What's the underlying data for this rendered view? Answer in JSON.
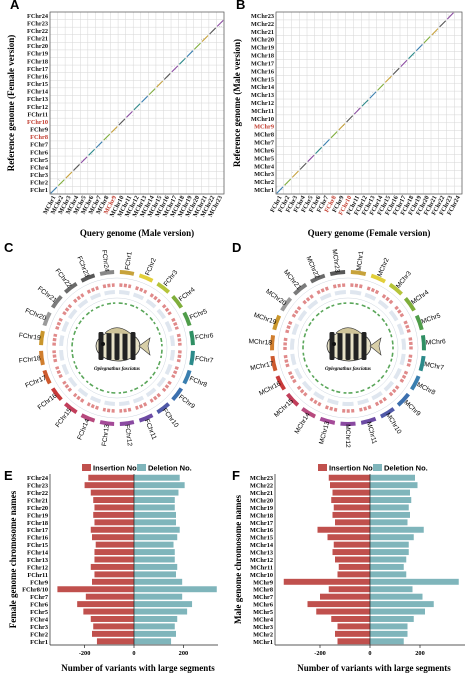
{
  "chart_data": [
    {
      "panel": "A",
      "type": "scatter",
      "xlabel": "Query genome (Male version)",
      "ylabel": "Reference genome (Female version)",
      "y_ticks": [
        "FChr1",
        "FChr2",
        "FChr3",
        "FChr4",
        "FChr5",
        "FChr6",
        "FChr7",
        "FChr8",
        "FChr9",
        "FChr10",
        "FChr11",
        "FChr12",
        "FChr13",
        "FChr14",
        "FChr15",
        "FChr16",
        "FChr17",
        "FChr18",
        "FChr19",
        "FChr20",
        "FChr21",
        "FChr22",
        "FChr23",
        "FChr24"
      ],
      "x_ticks": [
        "MChr1",
        "MChr2",
        "MChr3",
        "MChr4",
        "MChr5",
        "MChr6",
        "MChr7",
        "MChr8",
        "MChr9",
        "MChr10",
        "MChr11",
        "MChr12",
        "MChr13",
        "MChr14",
        "MChr15",
        "MChr16",
        "MChr17",
        "MChr18",
        "MChr19",
        "MChr20",
        "MChr21",
        "MChr22",
        "MChr23"
      ],
      "highlight_y": [
        "FChr8",
        "FChr10"
      ],
      "highlight_x": [
        "MChr9"
      ],
      "highlight_color": "#c0392b"
    },
    {
      "panel": "B",
      "type": "scatter",
      "xlabel": "Query genome (Female version)",
      "ylabel": "Reference genome (Male version)",
      "y_ticks": [
        "MChr1",
        "MChr2",
        "MChr3",
        "MChr4",
        "MChr5",
        "MChr6",
        "MChr7",
        "MChr8",
        "MChr9",
        "MChr10",
        "MChr11",
        "MChr12",
        "MChr13",
        "MChr14",
        "MChr15",
        "MChr16",
        "MChr17",
        "MChr18",
        "MChr19",
        "MChr20",
        "MChr21",
        "MChr22",
        "MChr23"
      ],
      "x_ticks": [
        "FChr1",
        "FChr2",
        "FChr3",
        "FChr4",
        "FChr5",
        "FChr6",
        "FChr7",
        "FChr8",
        "FChr9",
        "FChr10",
        "FChr11",
        "FChr12",
        "FChr13",
        "FChr14",
        "FChr15",
        "FChr16",
        "FChr17",
        "FChr18",
        "FChr19",
        "FChr20",
        "FChr21",
        "FChr22",
        "FChr23",
        "FChr24"
      ],
      "highlight_y": [
        "MChr9"
      ],
      "highlight_x": [
        "FChr8",
        "FChr10"
      ],
      "highlight_color": "#c0392b"
    },
    {
      "panel": "C",
      "type": "circos",
      "species": "Oplegnathus fasciatus",
      "chromosomes": [
        "FChr1",
        "FChr2",
        "FChr3",
        "FChr4",
        "FChr5",
        "FChr6",
        "FChr7",
        "FChr8",
        "FChr9",
        "FChr10",
        "FChr11",
        "FChr12",
        "FChr13",
        "FChr14",
        "FChr15",
        "FChr16",
        "FChr17",
        "FChr18",
        "FChr19",
        "FChr20",
        "FChr21",
        "FChr22",
        "FChr23",
        "FChr24"
      ]
    },
    {
      "panel": "D",
      "type": "circos",
      "species": "Oplegnathus fasciatus",
      "chromosomes": [
        "MChr1",
        "MChr2",
        "MChr3",
        "MChr4",
        "MChr5",
        "MChr6",
        "MChr7",
        "MChr8",
        "MChr9",
        "MChr10",
        "MChr11",
        "MChr12",
        "MChr13",
        "MChr14",
        "MChr15",
        "MChr16",
        "MChr17",
        "MChr18",
        "MChr19",
        "MChr20",
        "MChr21",
        "MChr22",
        "MChr23"
      ]
    },
    {
      "panel": "E",
      "type": "bar",
      "orientation": "horizontal-diverging",
      "categories": [
        "FChr1",
        "FChr2",
        "FChr3",
        "FChr4",
        "FChr5",
        "FChr6",
        "FChr7",
        "FChr8/10",
        "FChr9",
        "FChr11",
        "FChr12",
        "FChr13",
        "FChr14",
        "FChr15",
        "FChr16",
        "FChr17",
        "FChr18",
        "FChr19",
        "FChr20",
        "FChr21",
        "FChr22",
        "FChr23",
        "FChr24"
      ],
      "series": [
        {
          "name": "Insertion No.",
          "color": "#c0504d",
          "values": [
            -150,
            -170,
            -165,
            -175,
            -205,
            -230,
            -195,
            -310,
            -170,
            -160,
            -175,
            -160,
            -160,
            -155,
            -170,
            -175,
            -160,
            -165,
            -160,
            -165,
            -175,
            -200,
            -185
          ]
        },
        {
          "name": "Deletion No.",
          "color": "#7fb5bb",
          "values": [
            150,
            170,
            165,
            175,
            215,
            235,
            195,
            335,
            195,
            170,
            175,
            165,
            165,
            160,
            175,
            185,
            170,
            170,
            165,
            165,
            180,
            205,
            185
          ]
        }
      ],
      "xlabel": "Number of variants with large segments",
      "ylabel": "Female genome chromosome names",
      "x_ticks": [
        "-200",
        "0",
        "200"
      ],
      "xlim": [
        -340,
        340
      ],
      "highlight": "FChr8/10"
    },
    {
      "panel": "F",
      "type": "bar",
      "orientation": "horizontal-diverging",
      "categories": [
        "MChr1",
        "MChr2",
        "MChr3",
        "MChr4",
        "MChr5",
        "MChr6",
        "MChr7",
        "MChr8",
        "MChr9",
        "MChr10",
        "MChr11",
        "MChr12",
        "MChr13",
        "MChr14",
        "MChr15",
        "MChr16",
        "MChr17",
        "MChr18",
        "MChr19",
        "MChr20",
        "MChr21",
        "MChr22",
        "MChr23"
      ],
      "series": [
        {
          "name": "Insertion No.",
          "color": "#c0504d",
          "values": [
            -130,
            -140,
            -130,
            -155,
            -215,
            -250,
            -200,
            -165,
            -345,
            -130,
            -125,
            -140,
            -150,
            -145,
            -170,
            -210,
            -140,
            -150,
            -145,
            -155,
            -150,
            -160,
            -165
          ]
        },
        {
          "name": "Deletion No.",
          "color": "#7fb5bb",
          "values": [
            135,
            150,
            150,
            175,
            220,
            255,
            210,
            170,
            355,
            145,
            135,
            145,
            155,
            155,
            175,
            215,
            150,
            160,
            155,
            165,
            160,
            190,
            180
          ]
        }
      ],
      "xlabel": "Number of variants with large segments",
      "ylabel": "Male genome chromosome names",
      "x_ticks": [
        "-200",
        "0",
        "200"
      ],
      "xlim": [
        -380,
        380
      ],
      "highlight": "MChr9"
    }
  ],
  "colors": {
    "circos_palette": [
      "#c7a23b",
      "#e2cf3a",
      "#b6c43a",
      "#7fae3b",
      "#4f9d4a",
      "#2f8f63",
      "#2c8a8a",
      "#3a7fb0",
      "#3b6fae",
      "#5059a8",
      "#6c4aa3",
      "#8a4aa1",
      "#a44a98",
      "#b74a7e",
      "#c23e5b",
      "#c83a3a",
      "#cd5a2e",
      "#d07e2e",
      "#c9962c",
      "#9a9a9a",
      "#7b7b7b",
      "#6a6a6a",
      "#585858",
      "#888888"
    ],
    "insertion": "#c0504d",
    "deletion": "#7fb5bb",
    "highlight": "#c0392b"
  }
}
